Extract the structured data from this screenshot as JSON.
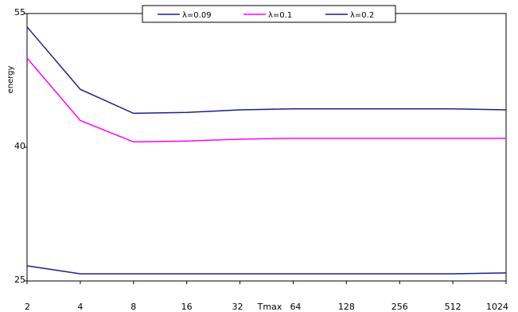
{
  "chart_data": {
    "type": "line",
    "title": "",
    "ylabel": "energy",
    "xlabel": "Tmax",
    "x": [
      "2",
      "4",
      "8",
      "16",
      "32",
      "64",
      "128",
      "256",
      "512",
      "1024"
    ],
    "ylim": [
      25,
      55
    ],
    "yticks": [
      25,
      40,
      55
    ],
    "grid": false,
    "legend_position": "top-center",
    "series": [
      {
        "name": "λ=0.09",
        "color": "#1f1f8c",
        "values": [
          26.7,
          25.8,
          25.8,
          25.8,
          25.8,
          25.8,
          25.8,
          25.8,
          25.8,
          25.9
        ]
      },
      {
        "name": "λ=0.1",
        "color": "#ff00ff",
        "values": [
          50.0,
          43.0,
          40.6,
          40.7,
          40.9,
          41.0,
          41.0,
          41.0,
          41.0,
          41.0
        ]
      },
      {
        "name": "λ=0.2",
        "color": "#1f1f8c",
        "values": [
          53.5,
          46.5,
          43.8,
          43.9,
          44.2,
          44.3,
          44.3,
          44.3,
          44.3,
          44.2
        ]
      }
    ]
  }
}
